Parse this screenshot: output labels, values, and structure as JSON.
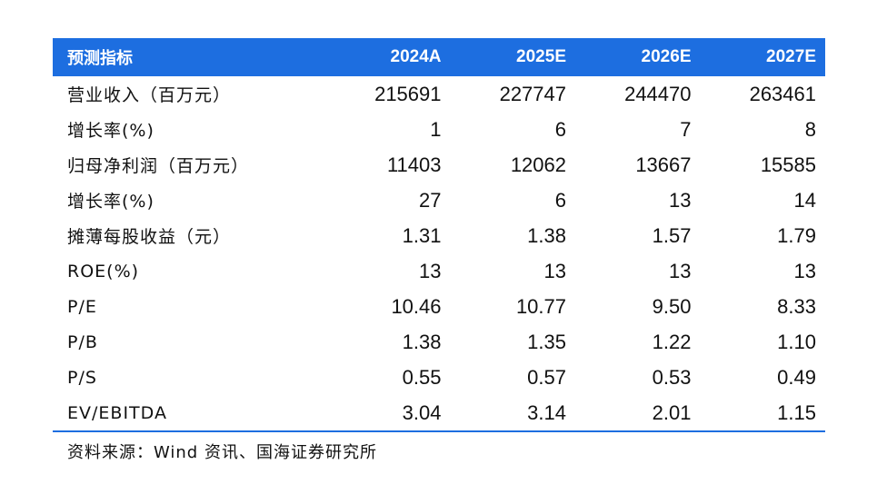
{
  "header": {
    "label": "预测指标",
    "years": [
      "2024A",
      "2025E",
      "2026E",
      "2027E"
    ]
  },
  "rows": [
    {
      "label": "营业收入（百万元）",
      "values": [
        "215691",
        "227747",
        "244470",
        "263461"
      ]
    },
    {
      "label": "增长率(%)",
      "values": [
        "1",
        "6",
        "7",
        "8"
      ]
    },
    {
      "label": "归母净利润（百万元）",
      "values": [
        "11403",
        "12062",
        "13667",
        "15585"
      ]
    },
    {
      "label": "增长率(%)",
      "values": [
        "27",
        "6",
        "13",
        "14"
      ]
    },
    {
      "label": "摊薄每股收益（元）",
      "values": [
        "1.31",
        "1.38",
        "1.57",
        "1.79"
      ]
    },
    {
      "label": "ROE(%)",
      "values": [
        "13",
        "13",
        "13",
        "13"
      ]
    },
    {
      "label": "P/E",
      "values": [
        "10.46",
        "10.77",
        "9.50",
        "8.33"
      ]
    },
    {
      "label": "P/B",
      "values": [
        "1.38",
        "1.35",
        "1.22",
        "1.10"
      ]
    },
    {
      "label": "P/S",
      "values": [
        "0.55",
        "0.57",
        "0.53",
        "0.49"
      ]
    },
    {
      "label": "EV/EBITDA",
      "values": [
        "3.04",
        "3.14",
        "2.01",
        "1.15"
      ]
    }
  ],
  "source": "资料来源：Wind 资讯、国海证券研究所",
  "colors": {
    "header_bg": "#1d6ee0",
    "header_text": "#ffffff",
    "bottom_rule": "#1d6ee0"
  }
}
